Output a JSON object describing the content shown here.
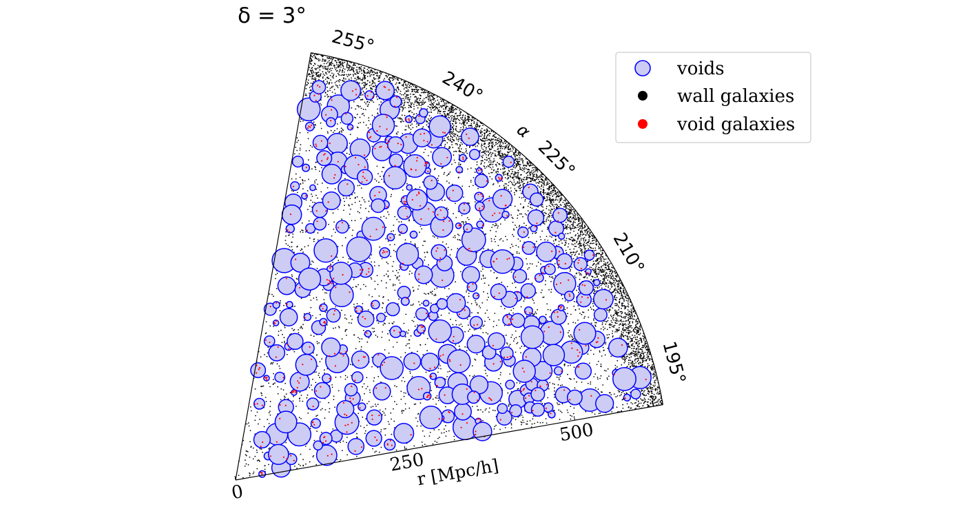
{
  "chart_data": {
    "type": "scatter",
    "projection": "polar-wedge",
    "title": "δ = 3°",
    "angle_label": "α",
    "radial_label": "r [Mpc/h]",
    "radial_range": [
      0,
      630
    ],
    "angle_range_deg": [
      190,
      260
    ],
    "radial_ticks": [
      {
        "value": 0,
        "label": "0"
      },
      {
        "value": 250,
        "label": "250"
      },
      {
        "value": 500,
        "label": "500"
      }
    ],
    "angle_ticks": [
      {
        "value": 195,
        "label": "195°"
      },
      {
        "value": 210,
        "label": "210°"
      },
      {
        "value": 225,
        "label": "225°"
      },
      {
        "value": 240,
        "label": "240°"
      },
      {
        "value": 255,
        "label": "255°"
      }
    ],
    "legend": {
      "location": "top-right",
      "entries": [
        {
          "label": "voids",
          "marker": "circle-filled-outline"
        },
        {
          "label": "wall galaxies",
          "marker": "dot"
        },
        {
          "label": "void galaxies",
          "marker": "dot"
        }
      ]
    },
    "series": [
      {
        "name": "voids",
        "kind": "circles",
        "approx_count": 300,
        "r_range": [
          20,
          610
        ],
        "alpha_range": [
          191,
          259
        ],
        "radius_range_mpc": [
          4,
          18
        ]
      },
      {
        "name": "wall galaxies",
        "kind": "points",
        "approx_count": 6000,
        "r_range": [
          0,
          630
        ],
        "alpha_range": [
          190,
          260
        ]
      },
      {
        "name": "void galaxies",
        "kind": "points",
        "approx_count": 500,
        "r_range": [
          20,
          610
        ],
        "alpha_range": [
          191,
          259
        ]
      }
    ],
    "colors": {
      "void_fill": "#ccccf5",
      "void_edge": "#0000ff",
      "wall_galaxy": "#000000",
      "void_galaxy": "#ff0000",
      "axis": "#000000"
    },
    "grid": false
  }
}
